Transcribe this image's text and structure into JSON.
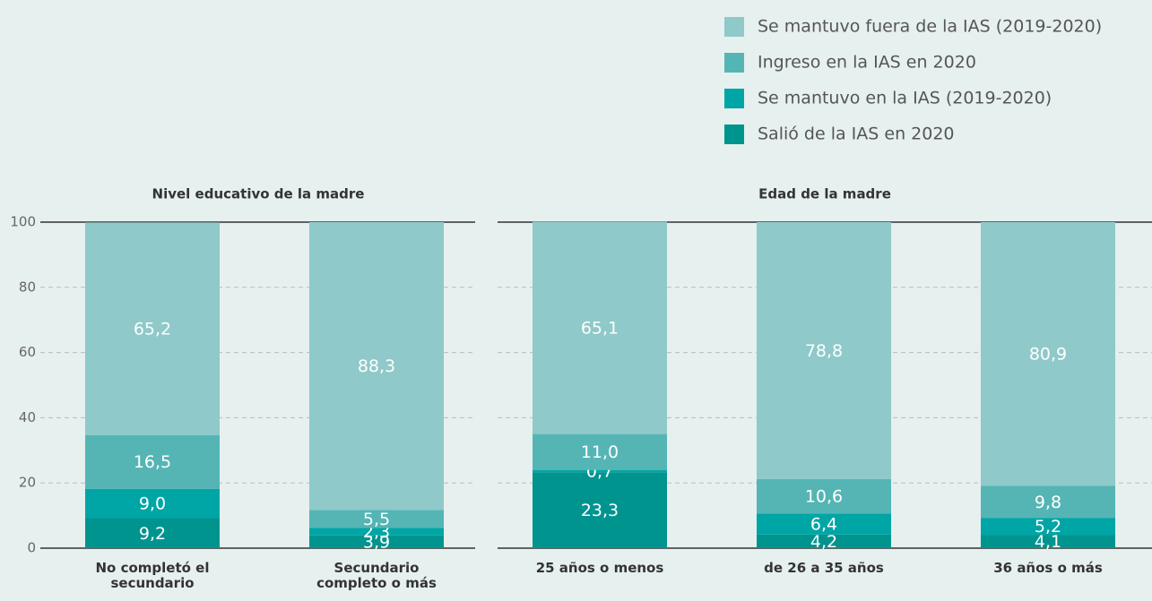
{
  "chart_data": {
    "type": "stacked_bar",
    "groups": [
      {
        "title": "Nivel educativo de la madre",
        "categories": [
          "No completó el secundario",
          "Secundario completo o más"
        ]
      },
      {
        "title": "Edad de la madre",
        "categories": [
          "25 años o menos",
          "de 26 a 35 años",
          "36 años o más"
        ]
      }
    ],
    "series": [
      {
        "name": "Salió de la IAS en 2020",
        "color": "#00948f",
        "values": [
          9.2,
          3.9,
          23.3,
          4.2,
          4.1
        ],
        "value_labels": [
          "9,2",
          "3,9",
          "23,3",
          "4,2",
          "4,1"
        ]
      },
      {
        "name": "Se mantuvo en la IAS (2019-2020)",
        "color": "#00a5a5",
        "values": [
          9.0,
          2.3,
          0.7,
          6.4,
          5.2
        ],
        "value_labels": [
          "9,0",
          "2,3",
          "0,7",
          "6,4",
          "5,2"
        ]
      },
      {
        "name": "Ingreso en la IAS en 2020",
        "color": "#55b5b5",
        "values": [
          16.5,
          5.5,
          11.0,
          10.6,
          9.8
        ],
        "value_labels": [
          "16,5",
          "5,5",
          "11,0",
          "10,6",
          "9,8"
        ]
      },
      {
        "name": "Se mantuvo fuera de la IAS (2019-2020)",
        "color": "#8fc9c9",
        "values": [
          65.2,
          88.3,
          65.1,
          78.8,
          80.9
        ],
        "value_labels": [
          "65,2",
          "88,3",
          "65,1",
          "78,8",
          "80,9"
        ]
      }
    ],
    "ylim": [
      0,
      100
    ],
    "yticks": [
      0,
      20,
      40,
      60,
      80,
      100
    ],
    "grid": true
  }
}
